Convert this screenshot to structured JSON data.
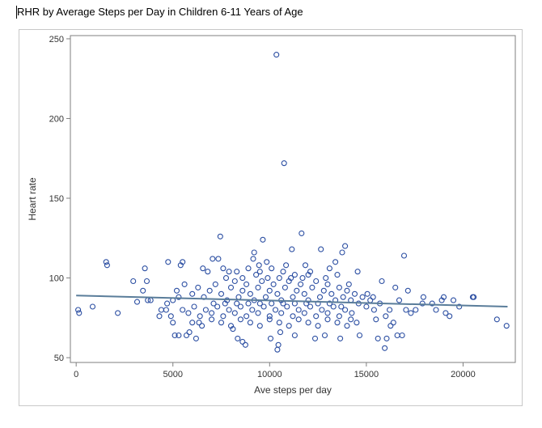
{
  "document": {
    "title": "RHR by Average Steps per Day in Children 6-11 Years of Age"
  },
  "chart_data": {
    "type": "scatter",
    "title": "RHR by Average Steps per Day in Children 6-11 Years of Age",
    "xlabel": "Ave steps per day",
    "ylabel": "Heart rate",
    "xlim": [
      -300,
      22700
    ],
    "ylim": [
      47,
      252
    ],
    "xticks": [
      0,
      5000,
      10000,
      15000,
      20000
    ],
    "yticks": [
      50,
      100,
      150,
      200,
      250
    ],
    "grid": false,
    "colors": {
      "points": "#2b4ea2",
      "fit_line": "#5a7d9a",
      "frame": "#7f7f7f"
    },
    "fit_line": {
      "x": [
        0,
        22300
      ],
      "y": [
        89,
        82
      ]
    },
    "points": [
      [
        100,
        80
      ],
      [
        150,
        78
      ],
      [
        850,
        82
      ],
      [
        1550,
        110
      ],
      [
        1600,
        108
      ],
      [
        2150,
        78
      ],
      [
        2950,
        98
      ],
      [
        3150,
        85
      ],
      [
        3450,
        92
      ],
      [
        3550,
        106
      ],
      [
        3650,
        98
      ],
      [
        3700,
        86
      ],
      [
        3850,
        86
      ],
      [
        4300,
        76
      ],
      [
        4650,
        80
      ],
      [
        4750,
        110
      ],
      [
        4900,
        76
      ],
      [
        5000,
        72
      ],
      [
        5100,
        64
      ],
      [
        5300,
        64
      ],
      [
        5400,
        108
      ],
      [
        5500,
        110
      ],
      [
        5700,
        64
      ],
      [
        5850,
        66
      ],
      [
        6200,
        62
      ],
      [
        6350,
        72
      ],
      [
        6550,
        106
      ],
      [
        7050,
        112
      ],
      [
        7350,
        112
      ],
      [
        7450,
        126
      ],
      [
        7750,
        100
      ],
      [
        7900,
        104
      ],
      [
        8100,
        68
      ],
      [
        8350,
        62
      ],
      [
        8600,
        60
      ],
      [
        8750,
        58
      ],
      [
        9150,
        112
      ],
      [
        9200,
        116
      ],
      [
        9450,
        108
      ],
      [
        9650,
        124
      ],
      [
        9850,
        110
      ],
      [
        10050,
        62
      ],
      [
        10350,
        240
      ],
      [
        10400,
        55
      ],
      [
        10450,
        58
      ],
      [
        10550,
        66
      ],
      [
        10750,
        172
      ],
      [
        10850,
        108
      ],
      [
        11150,
        118
      ],
      [
        11300,
        64
      ],
      [
        11650,
        128
      ],
      [
        11850,
        108
      ],
      [
        12000,
        102
      ],
      [
        12350,
        62
      ],
      [
        12650,
        118
      ],
      [
        12850,
        64
      ],
      [
        13100,
        106
      ],
      [
        13400,
        110
      ],
      [
        13650,
        62
      ],
      [
        13750,
        116
      ],
      [
        13900,
        120
      ],
      [
        14250,
        78
      ],
      [
        14550,
        104
      ],
      [
        14650,
        64
      ],
      [
        15050,
        90
      ],
      [
        15350,
        88
      ],
      [
        15600,
        62
      ],
      [
        15800,
        98
      ],
      [
        15950,
        56
      ],
      [
        16050,
        62
      ],
      [
        16250,
        70
      ],
      [
        16500,
        94
      ],
      [
        16600,
        64
      ],
      [
        16850,
        64
      ],
      [
        16950,
        114
      ],
      [
        17050,
        80
      ],
      [
        17150,
        92
      ],
      [
        17550,
        80
      ],
      [
        17900,
        84
      ],
      [
        17950,
        88
      ],
      [
        18400,
        84
      ],
      [
        18900,
        86
      ],
      [
        19000,
        88
      ],
      [
        19100,
        78
      ],
      [
        19300,
        76
      ],
      [
        19500,
        86
      ],
      [
        20500,
        88
      ],
      [
        20550,
        88
      ],
      [
        21750,
        74
      ],
      [
        22250,
        70
      ],
      [
        5200,
        92
      ],
      [
        5300,
        88
      ],
      [
        5600,
        96
      ],
      [
        6000,
        90
      ],
      [
        6300,
        94
      ],
      [
        6600,
        88
      ],
      [
        6900,
        92
      ],
      [
        7200,
        96
      ],
      [
        7500,
        90
      ],
      [
        7800,
        86
      ],
      [
        8000,
        94
      ],
      [
        8200,
        98
      ],
      [
        8400,
        88
      ],
      [
        8600,
        92
      ],
      [
        8800,
        96
      ],
      [
        9000,
        90
      ],
      [
        9200,
        86
      ],
      [
        9400,
        94
      ],
      [
        9600,
        98
      ],
      [
        9800,
        88
      ],
      [
        10000,
        92
      ],
      [
        10200,
        96
      ],
      [
        10400,
        90
      ],
      [
        10600,
        86
      ],
      [
        10800,
        94
      ],
      [
        11000,
        98
      ],
      [
        11200,
        88
      ],
      [
        11400,
        92
      ],
      [
        11600,
        96
      ],
      [
        11800,
        90
      ],
      [
        12000,
        86
      ],
      [
        12200,
        94
      ],
      [
        12400,
        98
      ],
      [
        12600,
        88
      ],
      [
        12800,
        92
      ],
      [
        13000,
        96
      ],
      [
        13200,
        90
      ],
      [
        13400,
        86
      ],
      [
        13600,
        94
      ],
      [
        13800,
        88
      ],
      [
        14000,
        92
      ],
      [
        14200,
        86
      ],
      [
        14400,
        90
      ],
      [
        14600,
        84
      ],
      [
        14800,
        88
      ],
      [
        15000,
        82
      ],
      [
        15200,
        86
      ],
      [
        15400,
        80
      ],
      [
        5500,
        80
      ],
      [
        5800,
        78
      ],
      [
        6100,
        82
      ],
      [
        6400,
        76
      ],
      [
        6700,
        80
      ],
      [
        7000,
        78
      ],
      [
        7300,
        82
      ],
      [
        7600,
        76
      ],
      [
        7900,
        80
      ],
      [
        8200,
        78
      ],
      [
        8500,
        82
      ],
      [
        8800,
        76
      ],
      [
        9100,
        80
      ],
      [
        9400,
        78
      ],
      [
        9700,
        82
      ],
      [
        10000,
        76
      ],
      [
        10300,
        80
      ],
      [
        10600,
        78
      ],
      [
        10900,
        82
      ],
      [
        11200,
        76
      ],
      [
        11500,
        80
      ],
      [
        11800,
        78
      ],
      [
        12100,
        82
      ],
      [
        12400,
        76
      ],
      [
        12700,
        80
      ],
      [
        13000,
        78
      ],
      [
        13300,
        82
      ],
      [
        13600,
        76
      ],
      [
        13900,
        80
      ],
      [
        14200,
        74
      ],
      [
        6000,
        72
      ],
      [
        6500,
        70
      ],
      [
        7000,
        74
      ],
      [
        7500,
        72
      ],
      [
        8000,
        70
      ],
      [
        8500,
        74
      ],
      [
        9000,
        72
      ],
      [
        9500,
        70
      ],
      [
        10000,
        74
      ],
      [
        10500,
        72
      ],
      [
        11000,
        70
      ],
      [
        11500,
        74
      ],
      [
        12000,
        72
      ],
      [
        12500,
        70
      ],
      [
        13000,
        74
      ],
      [
        13500,
        72
      ],
      [
        14000,
        70
      ],
      [
        14500,
        72
      ],
      [
        6800,
        104
      ],
      [
        7600,
        106
      ],
      [
        8300,
        104
      ],
      [
        8900,
        106
      ],
      [
        9500,
        104
      ],
      [
        10100,
        106
      ],
      [
        10700,
        104
      ],
      [
        11300,
        102
      ],
      [
        12100,
        104
      ],
      [
        12900,
        100
      ],
      [
        13500,
        102
      ],
      [
        14100,
        96
      ],
      [
        7100,
        84
      ],
      [
        7700,
        84
      ],
      [
        8300,
        84
      ],
      [
        8900,
        84
      ],
      [
        9500,
        84
      ],
      [
        10100,
        84
      ],
      [
        10700,
        84
      ],
      [
        11300,
        84
      ],
      [
        11900,
        84
      ],
      [
        12500,
        84
      ],
      [
        13100,
        84
      ],
      [
        13700,
        82
      ],
      [
        8600,
        100
      ],
      [
        9300,
        102
      ],
      [
        9900,
        100
      ],
      [
        10500,
        100
      ],
      [
        11100,
        100
      ],
      [
        11700,
        100
      ],
      [
        4700,
        84
      ],
      [
        5000,
        86
      ],
      [
        4400,
        80
      ],
      [
        15700,
        84
      ],
      [
        16200,
        80
      ],
      [
        16700,
        86
      ],
      [
        17300,
        78
      ],
      [
        15500,
        74
      ],
      [
        16000,
        76
      ],
      [
        16400,
        72
      ],
      [
        18600,
        80
      ],
      [
        19800,
        82
      ]
    ]
  }
}
